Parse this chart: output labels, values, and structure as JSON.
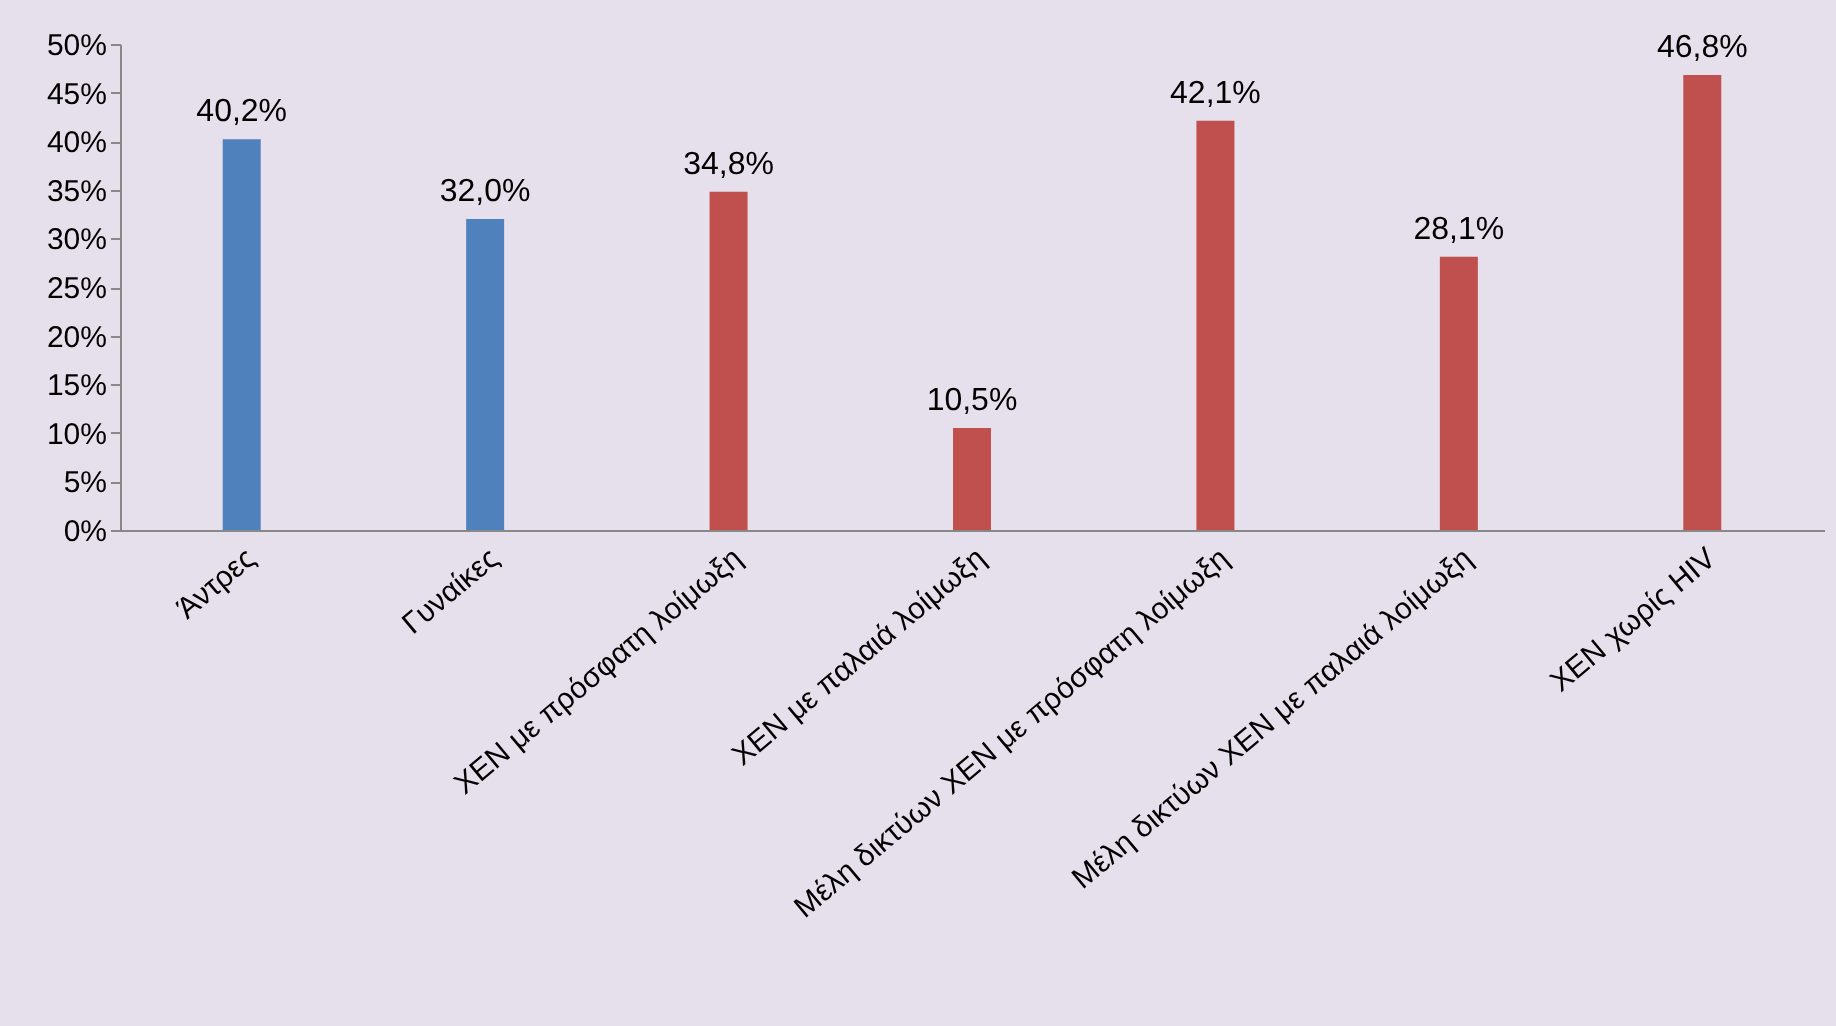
{
  "chart_data": {
    "type": "bar",
    "categories": [
      "Άντρες",
      "Γυναίκες",
      "ΧΕΝ με πρόσφατη λοίμωξη",
      "ΧΕΝ με παλαιά λοίμωξη",
      "Μέλη δικτύων ΧΕΝ με πρόσφατη λοίμωξη",
      "Μέλη δικτύων ΧΕΝ με παλαιά λοίμωξη",
      "ΧΕΝ χωρίς HIV"
    ],
    "values": [
      40.2,
      32.0,
      34.8,
      10.5,
      42.1,
      28.1,
      46.8
    ],
    "colors": [
      "#4f81bd",
      "#4f81bd",
      "#c0504d",
      "#c0504d",
      "#c0504d",
      "#c0504d",
      "#c0504d"
    ],
    "value_labels": [
      "40,2%",
      "32,0%",
      "34,8%",
      "10,5%",
      "42,1%",
      "28,1%",
      "46,8%"
    ],
    "ylim": [
      0,
      50
    ],
    "yticks": [
      {
        "value": 0,
        "label": "0%"
      },
      {
        "value": 5,
        "label": "5%"
      },
      {
        "value": 10,
        "label": "10%"
      },
      {
        "value": 15,
        "label": "15%"
      },
      {
        "value": 20,
        "label": "20%"
      },
      {
        "value": 25,
        "label": "25%"
      },
      {
        "value": 30,
        "label": "30%"
      },
      {
        "value": 35,
        "label": "35%"
      },
      {
        "value": 40,
        "label": "40%"
      },
      {
        "value": 45,
        "label": "45%"
      },
      {
        "value": 50,
        "label": "50%"
      }
    ],
    "grid": false
  }
}
